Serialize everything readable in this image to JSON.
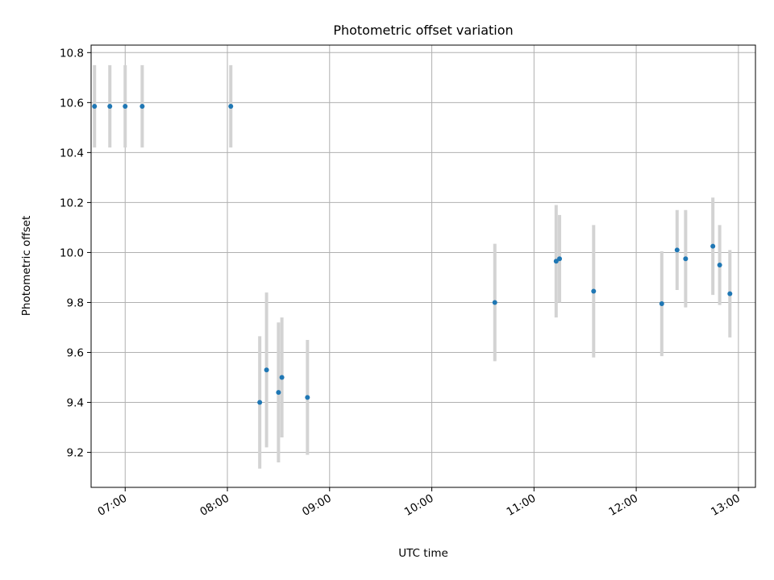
{
  "chart_data": {
    "type": "scatter",
    "title": "Photometric offset variation",
    "xlabel": "UTC time",
    "ylabel": "Photometric offset",
    "x_axis_type": "time",
    "xlim": [
      "06:40",
      "13:10"
    ],
    "ylim": [
      9.06,
      10.83
    ],
    "grid": true,
    "x_ticks": [
      "07:00",
      "08:00",
      "09:00",
      "10:00",
      "11:00",
      "12:00",
      "13:00"
    ],
    "y_ticks": [
      "9.2",
      "9.4",
      "9.6",
      "9.8",
      "10.0",
      "10.2",
      "10.4",
      "10.6",
      "10.8"
    ],
    "x_tick_label_rotation": 30,
    "colors": {
      "points": "#1f77b4",
      "error_bars": "#d3d3d3",
      "grid": "#b0b0b0"
    },
    "points": [
      {
        "x": "06:42",
        "y": 10.585,
        "err": 0.165
      },
      {
        "x": "06:51",
        "y": 10.585,
        "err": 0.165
      },
      {
        "x": "07:00",
        "y": 10.585,
        "err": 0.165
      },
      {
        "x": "07:10",
        "y": 10.585,
        "err": 0.165
      },
      {
        "x": "08:02",
        "y": 10.585,
        "err": 0.165
      },
      {
        "x": "08:19",
        "y": 9.4,
        "err": 0.265
      },
      {
        "x": "08:23",
        "y": 9.53,
        "err": 0.31
      },
      {
        "x": "08:30",
        "y": 9.44,
        "err": 0.28
      },
      {
        "x": "08:32",
        "y": 9.5,
        "err": 0.24
      },
      {
        "x": "08:47",
        "y": 9.42,
        "err": 0.23
      },
      {
        "x": "10:37",
        "y": 9.8,
        "err": 0.235
      },
      {
        "x": "11:13",
        "y": 9.965,
        "err": 0.225
      },
      {
        "x": "11:15",
        "y": 9.975,
        "err": 0.175
      },
      {
        "x": "11:35",
        "y": 9.845,
        "err": 0.265
      },
      {
        "x": "12:15",
        "y": 9.795,
        "err": 0.21
      },
      {
        "x": "12:24",
        "y": 10.01,
        "err": 0.16
      },
      {
        "x": "12:29",
        "y": 9.975,
        "err": 0.195
      },
      {
        "x": "12:45",
        "y": 10.025,
        "err": 0.195
      },
      {
        "x": "12:49",
        "y": 9.95,
        "err": 0.16
      },
      {
        "x": "12:55",
        "y": 9.835,
        "err": 0.175
      }
    ]
  }
}
